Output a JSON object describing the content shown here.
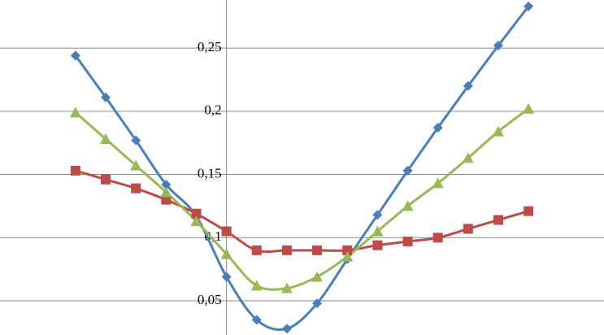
{
  "chart_data": {
    "type": "line",
    "x": [
      -5,
      -4,
      -3,
      -2,
      -1,
      0,
      1,
      2,
      3,
      4,
      5,
      6,
      7,
      8,
      9,
      10
    ],
    "series": [
      {
        "color": "#4a7ebb",
        "marker": "diamond",
        "values": [
          0.244,
          0.211,
          0.177,
          0.142,
          0.117,
          0.069,
          0.035,
          0.028,
          0.048,
          0.083,
          0.118,
          0.153,
          0.187,
          0.22,
          0.252,
          0.283
        ]
      },
      {
        "color": "#be4b48",
        "marker": "square",
        "values": [
          0.153,
          0.146,
          0.139,
          0.13,
          0.119,
          0.105,
          0.09,
          0.09,
          0.09,
          0.09,
          0.094,
          0.097,
          0.1,
          0.107,
          0.114,
          0.121
        ]
      },
      {
        "color": "#98b954",
        "marker": "triangle",
        "values": [
          0.199,
          0.178,
          0.157,
          0.136,
          0.113,
          0.087,
          0.062,
          0.06,
          0.069,
          0.085,
          0.105,
          0.125,
          0.143,
          0.163,
          0.184,
          0.202
        ]
      }
    ],
    "xlim": [
      -7.5,
      12.5
    ],
    "ylim": [
      0.023,
      0.288
    ],
    "yticks": [
      {
        "value": 0.05,
        "label": "0,05"
      },
      {
        "value": 0.1,
        "label": "0,1"
      },
      {
        "value": 0.15,
        "label": "0,15"
      },
      {
        "value": 0.2,
        "label": "0,2"
      },
      {
        "value": 0.25,
        "label": "0,25"
      }
    ],
    "grid": true,
    "smooth": true
  }
}
